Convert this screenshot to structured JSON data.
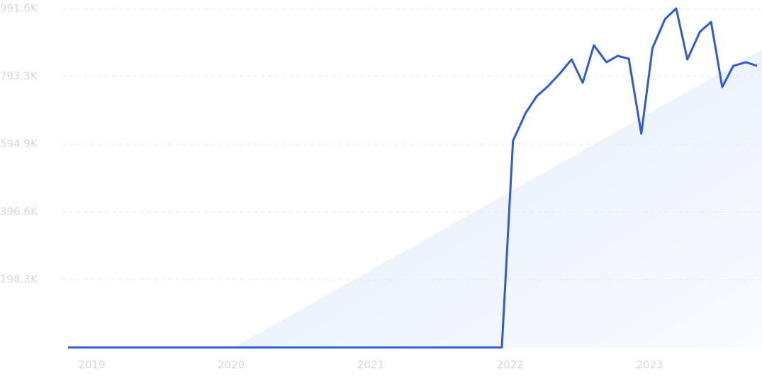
{
  "chart_data": {
    "type": "line",
    "x": [
      2018.83,
      2021.94,
      2022.02,
      2022.11,
      2022.19,
      2022.27,
      2022.36,
      2022.44,
      2022.52,
      2022.6,
      2022.69,
      2022.77,
      2022.85,
      2022.94,
      2023.02,
      2023.11,
      2023.19,
      2023.27,
      2023.36,
      2023.44,
      2023.52,
      2023.6,
      2023.69,
      2023.77
    ],
    "values": [
      0,
      0,
      604500,
      685200,
      734900,
      763900,
      803200,
      842600,
      774300,
      884000,
      834300,
      852900,
      844600,
      625200,
      875700,
      960600,
      991600,
      842600,
      923300,
      952300,
      761800,
      823900,
      834300,
      823900
    ],
    "color": "#2f5bd8",
    "xlim": [
      2018.83,
      2023.79
    ],
    "xticks": [
      2019,
      2020,
      2021,
      2022,
      2023
    ],
    "ylim": [
      0,
      991600
    ],
    "yticks": [
      {
        "value": 198300,
        "label": "198.3K"
      },
      {
        "value": 396600,
        "label": "396.6K"
      },
      {
        "value": 594900,
        "label": "594.9K"
      },
      {
        "value": 793300,
        "label": "793.3K"
      },
      {
        "value": 991600,
        "label": "991.6K"
      }
    ],
    "grid": true
  }
}
